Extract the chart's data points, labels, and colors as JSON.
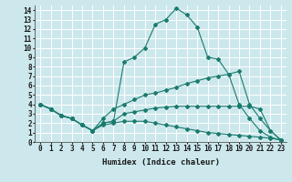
{
  "xlabel": "Humidex (Indice chaleur)",
  "background_color": "#cce8ec",
  "grid_color": "#ffffff",
  "line_color": "#1a7a6e",
  "xlim": [
    -0.5,
    23.5
  ],
  "ylim": [
    0,
    14.5
  ],
  "xticks": [
    0,
    1,
    2,
    3,
    4,
    5,
    6,
    7,
    8,
    9,
    10,
    11,
    12,
    13,
    14,
    15,
    16,
    17,
    18,
    19,
    20,
    21,
    22,
    23
  ],
  "yticks": [
    0,
    1,
    2,
    3,
    4,
    5,
    6,
    7,
    8,
    9,
    10,
    11,
    12,
    13,
    14
  ],
  "line1_x": [
    0,
    1,
    2,
    3,
    4,
    5,
    6,
    7,
    8,
    9,
    10,
    11,
    12,
    13,
    14,
    15,
    16,
    17,
    18,
    19,
    20,
    21,
    22,
    23
  ],
  "line1_y": [
    4.0,
    3.5,
    2.8,
    2.5,
    1.8,
    1.2,
    2.0,
    2.2,
    8.5,
    9.0,
    10.0,
    12.5,
    13.0,
    14.2,
    13.5,
    12.2,
    9.0,
    8.8,
    7.2,
    4.0,
    2.5,
    1.2,
    0.5,
    0.2
  ],
  "line2_x": [
    0,
    1,
    2,
    3,
    4,
    5,
    6,
    7,
    8,
    9,
    10,
    11,
    12,
    13,
    14,
    15,
    16,
    17,
    18,
    19,
    20,
    21,
    22,
    23
  ],
  "line2_y": [
    4.0,
    3.5,
    2.8,
    2.5,
    1.8,
    1.2,
    2.5,
    3.5,
    4.0,
    4.5,
    5.0,
    5.2,
    5.5,
    5.8,
    6.2,
    6.5,
    6.8,
    7.0,
    7.2,
    7.5,
    4.0,
    2.5,
    1.2,
    0.2
  ],
  "line3_x": [
    0,
    1,
    2,
    3,
    4,
    5,
    6,
    7,
    8,
    9,
    10,
    11,
    12,
    13,
    14,
    15,
    16,
    17,
    18,
    19,
    20,
    21,
    22,
    23
  ],
  "line3_y": [
    4.0,
    3.5,
    2.8,
    2.5,
    1.8,
    1.2,
    2.0,
    2.2,
    3.0,
    3.2,
    3.4,
    3.6,
    3.7,
    3.8,
    3.8,
    3.8,
    3.8,
    3.8,
    3.8,
    3.8,
    3.8,
    3.5,
    1.2,
    0.2
  ],
  "line4_x": [
    0,
    1,
    2,
    3,
    4,
    5,
    6,
    7,
    8,
    9,
    10,
    11,
    12,
    13,
    14,
    15,
    16,
    17,
    18,
    19,
    20,
    21,
    22,
    23
  ],
  "line4_y": [
    4.0,
    3.5,
    2.8,
    2.5,
    1.8,
    1.2,
    1.8,
    2.0,
    2.2,
    2.2,
    2.2,
    2.0,
    1.8,
    1.6,
    1.4,
    1.2,
    1.0,
    0.9,
    0.8,
    0.7,
    0.6,
    0.5,
    0.4,
    0.2
  ]
}
